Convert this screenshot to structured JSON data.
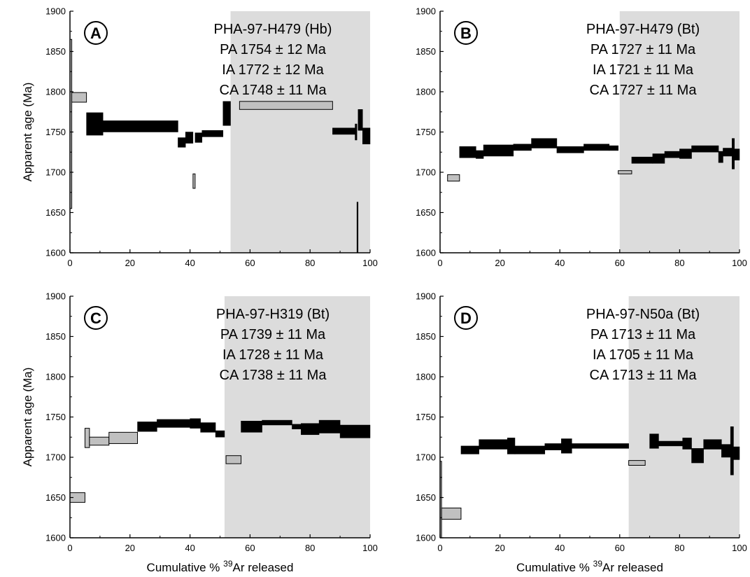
{
  "chart_data": [
    {
      "panel": "A",
      "type": "step-spectrum",
      "xlim": [
        0,
        100
      ],
      "ylim": [
        1600,
        1900
      ],
      "xticks": [
        0,
        20,
        40,
        60,
        80,
        100
      ],
      "yticks": [
        1600,
        1650,
        1700,
        1750,
        1800,
        1850,
        1900
      ],
      "ylabel": "Apparent age (Ma)",
      "shade_from": 53.5,
      "annotation": [
        "PHA-97-H479 (Hb)",
        "PA 1754 ± 12 Ma",
        "IA 1772 ± 12 Ma",
        "CA 1748 ± 11 Ma"
      ],
      "steps": [
        {
          "x0": 0,
          "x1": 0.6,
          "age": 1760,
          "err": 105,
          "fill": "gray"
        },
        {
          "x0": 0.6,
          "x1": 5.5,
          "age": 1793,
          "err": 6,
          "fill": "gray"
        },
        {
          "x0": 5.5,
          "x1": 11,
          "age": 1760,
          "err": 14,
          "fill": "black"
        },
        {
          "x0": 11,
          "x1": 36,
          "age": 1757,
          "err": 7,
          "fill": "black"
        },
        {
          "x0": 36,
          "x1": 38.5,
          "age": 1737,
          "err": 6,
          "fill": "black"
        },
        {
          "x0": 38.5,
          "x1": 41,
          "age": 1743,
          "err": 7,
          "fill": "black"
        },
        {
          "x0": 41,
          "x1": 41.7,
          "age": 1689,
          "err": 9,
          "fill": "gray"
        },
        {
          "x0": 41.7,
          "x1": 44,
          "age": 1743,
          "err": 6,
          "fill": "black"
        },
        {
          "x0": 44,
          "x1": 51,
          "age": 1748,
          "err": 4,
          "fill": "black"
        },
        {
          "x0": 51,
          "x1": 53.5,
          "age": 1773,
          "err": 15,
          "fill": "black"
        },
        {
          "x0": 56.5,
          "x1": 87.5,
          "age": 1783,
          "err": 5,
          "fill": "gray"
        },
        {
          "x0": 87.5,
          "x1": 95,
          "age": 1751,
          "err": 4,
          "fill": "black"
        },
        {
          "x0": 95,
          "x1": 95.6,
          "age": 1750,
          "err": 10,
          "fill": "black"
        },
        {
          "x0": 95.6,
          "x1": 96,
          "age": 1600,
          "err": 63,
          "fill": "black"
        },
        {
          "x0": 96,
          "x1": 97.5,
          "age": 1765,
          "err": 13,
          "fill": "black"
        },
        {
          "x0": 97.5,
          "x1": 100,
          "age": 1745,
          "err": 10,
          "fill": "black"
        }
      ]
    },
    {
      "panel": "B",
      "type": "step-spectrum",
      "xlim": [
        0,
        100
      ],
      "ylim": [
        1600,
        1900
      ],
      "xticks": [
        0,
        20,
        40,
        60,
        80,
        100
      ],
      "yticks": [
        1600,
        1650,
        1700,
        1750,
        1800,
        1850,
        1900
      ],
      "ylabel": "",
      "shade_from": 60,
      "annotation": [
        "PHA-97-H479 (Bt)",
        "PA 1727 ± 11 Ma",
        "IA 1721 ± 11 Ma",
        "CA 1727 ± 11 Ma"
      ],
      "steps": [
        {
          "x0": 2.5,
          "x1": 6.5,
          "age": 1693,
          "err": 4,
          "fill": "gray"
        },
        {
          "x0": 6.5,
          "x1": 12,
          "age": 1725,
          "err": 7,
          "fill": "black"
        },
        {
          "x0": 12,
          "x1": 14.5,
          "age": 1722,
          "err": 5,
          "fill": "black"
        },
        {
          "x0": 14.5,
          "x1": 24.5,
          "age": 1727,
          "err": 7,
          "fill": "black"
        },
        {
          "x0": 24.5,
          "x1": 30.5,
          "age": 1731,
          "err": 4,
          "fill": "black"
        },
        {
          "x0": 30.5,
          "x1": 39,
          "age": 1736,
          "err": 6,
          "fill": "black"
        },
        {
          "x0": 39,
          "x1": 48,
          "age": 1728,
          "err": 4,
          "fill": "black"
        },
        {
          "x0": 48,
          "x1": 56.5,
          "age": 1731,
          "err": 4,
          "fill": "black"
        },
        {
          "x0": 56.5,
          "x1": 59.5,
          "age": 1730,
          "err": 3,
          "fill": "black"
        },
        {
          "x0": 59.5,
          "x1": 64,
          "age": 1700,
          "err": 2,
          "fill": "gray"
        },
        {
          "x0": 64,
          "x1": 71,
          "age": 1715,
          "err": 4,
          "fill": "black"
        },
        {
          "x0": 71,
          "x1": 75,
          "age": 1717,
          "err": 6,
          "fill": "black"
        },
        {
          "x0": 75,
          "x1": 80,
          "age": 1722,
          "err": 4,
          "fill": "black"
        },
        {
          "x0": 80,
          "x1": 84,
          "age": 1723,
          "err": 6,
          "fill": "black"
        },
        {
          "x0": 84,
          "x1": 93,
          "age": 1729,
          "err": 4,
          "fill": "black"
        },
        {
          "x0": 93,
          "x1": 94.5,
          "age": 1719,
          "err": 7,
          "fill": "black"
        },
        {
          "x0": 94.5,
          "x1": 97.5,
          "age": 1725,
          "err": 5,
          "fill": "black"
        },
        {
          "x0": 97.5,
          "x1": 98.3,
          "age": 1723,
          "err": 19,
          "fill": "black"
        },
        {
          "x0": 98.3,
          "x1": 100,
          "age": 1722,
          "err": 7,
          "fill": "black"
        }
      ]
    },
    {
      "panel": "C",
      "type": "step-spectrum",
      "xlim": [
        0,
        100
      ],
      "ylim": [
        1600,
        1900
      ],
      "xticks": [
        0,
        20,
        40,
        60,
        80,
        100
      ],
      "yticks": [
        1600,
        1650,
        1700,
        1750,
        1800,
        1850,
        1900
      ],
      "ylabel": "Apparent age (Ma)",
      "shade_from": 51.5,
      "annotation": [
        "PHA-97-H319 (Bt)",
        "PA 1739 ± 11 Ma",
        "IA 1728 ± 11 Ma",
        "CA 1738 ± 11 Ma"
      ],
      "steps": [
        {
          "x0": 0,
          "x1": 5,
          "age": 1650,
          "err": 6,
          "fill": "gray"
        },
        {
          "x0": 5,
          "x1": 6.5,
          "age": 1724,
          "err": 12,
          "fill": "gray"
        },
        {
          "x0": 6.5,
          "x1": 13,
          "age": 1720,
          "err": 5,
          "fill": "gray"
        },
        {
          "x0": 13,
          "x1": 22.5,
          "age": 1724,
          "err": 7,
          "fill": "gray"
        },
        {
          "x0": 22.5,
          "x1": 29,
          "age": 1738,
          "err": 6,
          "fill": "black"
        },
        {
          "x0": 29,
          "x1": 40,
          "age": 1742,
          "err": 5,
          "fill": "black"
        },
        {
          "x0": 40,
          "x1": 43.5,
          "age": 1742,
          "err": 6,
          "fill": "black"
        },
        {
          "x0": 43.5,
          "x1": 48.5,
          "age": 1737,
          "err": 6,
          "fill": "black"
        },
        {
          "x0": 48.5,
          "x1": 51.5,
          "age": 1729,
          "err": 4,
          "fill": "black"
        },
        {
          "x0": 52,
          "x1": 57,
          "age": 1697,
          "err": 5,
          "fill": "gray"
        },
        {
          "x0": 57,
          "x1": 64,
          "age": 1738,
          "err": 7,
          "fill": "black"
        },
        {
          "x0": 64,
          "x1": 74,
          "age": 1743,
          "err": 3,
          "fill": "black"
        },
        {
          "x0": 74,
          "x1": 77,
          "age": 1738,
          "err": 3,
          "fill": "black"
        },
        {
          "x0": 77,
          "x1": 83,
          "age": 1735,
          "err": 7,
          "fill": "black"
        },
        {
          "x0": 83,
          "x1": 90,
          "age": 1738,
          "err": 8,
          "fill": "black"
        },
        {
          "x0": 90,
          "x1": 100,
          "age": 1732,
          "err": 8,
          "fill": "black"
        }
      ]
    },
    {
      "panel": "D",
      "type": "step-spectrum",
      "xlim": [
        0,
        100
      ],
      "ylim": [
        1600,
        1900
      ],
      "xticks": [
        0,
        20,
        40,
        60,
        80,
        100
      ],
      "yticks": [
        1600,
        1650,
        1700,
        1750,
        1800,
        1850,
        1900
      ],
      "ylabel": "",
      "shade_from": 63,
      "annotation": [
        "PHA-97-N50a (Bt)",
        "PA 1713 ± 11 Ma",
        "IA 1705 ± 11 Ma",
        "CA 1713 ± 11 Ma"
      ],
      "steps": [
        {
          "x0": 0,
          "x1": 0.5,
          "age": 1645,
          "err": 50,
          "fill": "gray"
        },
        {
          "x0": 0.5,
          "x1": 7,
          "age": 1630,
          "err": 7,
          "fill": "gray"
        },
        {
          "x0": 7,
          "x1": 13,
          "age": 1709,
          "err": 5,
          "fill": "black"
        },
        {
          "x0": 13,
          "x1": 22.5,
          "age": 1716,
          "err": 6,
          "fill": "black"
        },
        {
          "x0": 22.5,
          "x1": 25,
          "age": 1714,
          "err": 10,
          "fill": "black"
        },
        {
          "x0": 25,
          "x1": 35,
          "age": 1709,
          "err": 5,
          "fill": "black"
        },
        {
          "x0": 35,
          "x1": 40.5,
          "age": 1713,
          "err": 4,
          "fill": "black"
        },
        {
          "x0": 40.5,
          "x1": 44,
          "age": 1714,
          "err": 9,
          "fill": "black"
        },
        {
          "x0": 44,
          "x1": 63,
          "age": 1714,
          "err": 3,
          "fill": "black"
        },
        {
          "x0": 63,
          "x1": 68.5,
          "age": 1693,
          "err": 3,
          "fill": "gray"
        },
        {
          "x0": 70,
          "x1": 73,
          "age": 1720,
          "err": 9,
          "fill": "black"
        },
        {
          "x0": 73,
          "x1": 81,
          "age": 1717,
          "err": 3,
          "fill": "black"
        },
        {
          "x0": 81,
          "x1": 84,
          "age": 1717,
          "err": 7,
          "fill": "black"
        },
        {
          "x0": 84,
          "x1": 88,
          "age": 1702,
          "err": 9,
          "fill": "black"
        },
        {
          "x0": 88,
          "x1": 94,
          "age": 1716,
          "err": 6,
          "fill": "black"
        },
        {
          "x0": 94,
          "x1": 97,
          "age": 1708,
          "err": 8,
          "fill": "black"
        },
        {
          "x0": 97,
          "x1": 98,
          "age": 1708,
          "err": 30,
          "fill": "black"
        },
        {
          "x0": 98,
          "x1": 100,
          "age": 1705,
          "err": 8,
          "fill": "black"
        }
      ]
    }
  ],
  "xlabel_prefix": "Cumulative % ",
  "xlabel_superscript": "39",
  "xlabel_suffix": "Ar released",
  "colors": {
    "shade": "#dcdcdc",
    "gray_step": "#c0c0c0",
    "black_step": "#000000",
    "axis": "#000000"
  }
}
